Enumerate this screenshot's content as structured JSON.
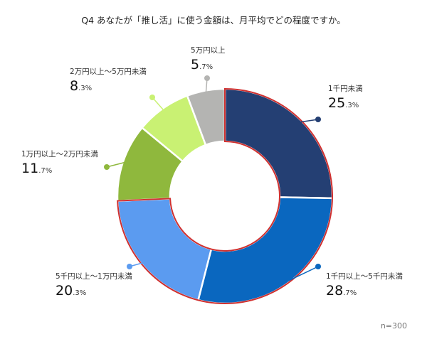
{
  "title": "Q4 あなたが「推し活」に使う金額は、月平均でどの程度ですか。",
  "note": "n=300",
  "chart_data": {
    "type": "pie",
    "subtype": "donut",
    "title": "Q4 あなたが「推し活」に使う金額は、月平均でどの程度ですか。",
    "categories": [
      "1千円未満",
      "1千円以上〜5千円未満",
      "5千円以上〜1万円未満",
      "1万円以上〜2万円未満",
      "2万円以上〜5万円未満",
      "5万円以上"
    ],
    "values": [
      25.3,
      28.7,
      20.3,
      11.7,
      8.3,
      5.7
    ],
    "unit": "%",
    "colors": [
      "#243f73",
      "#0a67bf",
      "#5b9bf0",
      "#8fb83d",
      "#c9f173",
      "#b4b4b2"
    ],
    "highlighted": [
      "1千円未満",
      "1千円以上〜5千円未満",
      "5千円以上〜1万円未満"
    ],
    "highlight_color": "#d0302f",
    "start_angle": "12 o'clock, clockwise",
    "n": 300
  },
  "labels": [
    {
      "name": "1千円未満",
      "big": "25",
      "small": ".3%"
    },
    {
      "name": "1千円以上〜5千円未満",
      "big": "28",
      "small": ".7%"
    },
    {
      "name": "5千円以上〜1万円未満",
      "big": "20",
      "small": ".3%"
    },
    {
      "name": "1万円以上〜2万円未満",
      "big": "11",
      "small": ".7%"
    },
    {
      "name": "2万円以上〜5万円未満",
      "big": "8",
      "small": ".3%"
    },
    {
      "name": "5万円以上",
      "big": "5",
      "small": ".7%"
    }
  ]
}
